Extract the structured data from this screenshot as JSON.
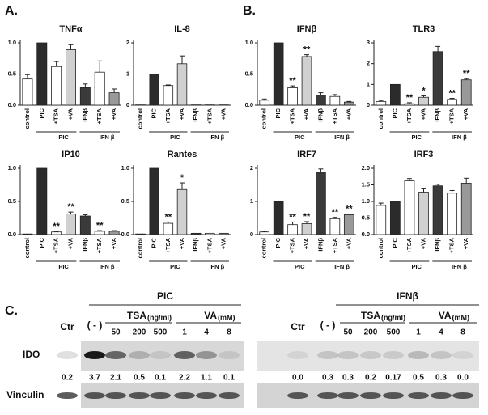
{
  "panels": [
    "A.",
    "B.",
    "C."
  ],
  "chart_data": [
    {
      "type": "bar",
      "title": "TNFα",
      "categories": [
        "control",
        "PIC",
        "+TSA",
        "+VA",
        "IFNβ",
        "+TSA",
        "+VA"
      ],
      "groups": [
        "PIC",
        "IFN β"
      ],
      "values": [
        0.42,
        1.0,
        0.62,
        0.89,
        0.28,
        0.53,
        0.2
      ],
      "errors": [
        0.07,
        0,
        0.08,
        0.08,
        0.06,
        0.18,
        0.06
      ],
      "annotations": [
        null,
        null,
        null,
        null,
        null,
        null,
        null
      ],
      "colors": [
        "#ffffff",
        "#2b2b2b",
        "#ffffff",
        "#d0d0d0",
        "#3a3a3a",
        "#ffffff",
        "#999999"
      ],
      "ylim": [
        0,
        1
      ],
      "yticks": [
        {
          "value": 0,
          "label": "0.0"
        },
        {
          "value": 0.5,
          "label": "0.5"
        },
        {
          "value": 1,
          "label": "1.0"
        }
      ]
    },
    {
      "type": "bar",
      "title": "IL-8",
      "categories": [
        "control",
        "PIC",
        "+TSA",
        "+VA",
        "IFNβ",
        "+TSA",
        "+VA"
      ],
      "groups": [
        "PIC",
        "IFN β"
      ],
      "values": [
        0.01,
        1.0,
        0.63,
        1.33,
        0.01,
        0.01,
        0.01
      ],
      "errors": [
        0,
        0,
        0.02,
        0.25,
        0,
        0,
        0
      ],
      "annotations": [
        null,
        null,
        null,
        null,
        null,
        null,
        null
      ],
      "colors": [
        "#ffffff",
        "#2b2b2b",
        "#ffffff",
        "#d0d0d0",
        "#3a3a3a",
        "#ffffff",
        "#999999"
      ],
      "ylim": [
        0,
        2
      ],
      "yticks": [
        0,
        1,
        2
      ]
    },
    {
      "type": "bar",
      "title": "IFNβ",
      "categories": [
        "control",
        "PIC",
        "+TSA",
        "+VA",
        "IFNβ",
        "+TSA",
        "+VA"
      ],
      "groups": [
        "PIC",
        "IFN β"
      ],
      "values": [
        0.08,
        1.0,
        0.28,
        0.78,
        0.16,
        0.14,
        0.05
      ],
      "errors": [
        0.02,
        0,
        0.03,
        0.03,
        0.04,
        0.03,
        0.01
      ],
      "annotations": [
        null,
        null,
        "**",
        "**",
        null,
        null,
        null
      ],
      "colors": [
        "#ffffff",
        "#2b2b2b",
        "#ffffff",
        "#d0d0d0",
        "#3a3a3a",
        "#ffffff",
        "#999999"
      ],
      "ylim": [
        0,
        1
      ],
      "yticks": [
        {
          "value": 0,
          "label": "0.0"
        },
        {
          "value": 0.5,
          "label": "0.5"
        },
        {
          "value": 1,
          "label": "1.0"
        }
      ]
    },
    {
      "type": "bar",
      "title": "TLR3",
      "categories": [
        "control",
        "PIC",
        "+TSA",
        "+VA",
        "IFNβ",
        "+TSA",
        "+VA"
      ],
      "groups": [
        "PIC",
        "IFN β"
      ],
      "values": [
        0.18,
        1.0,
        0.07,
        0.38,
        2.58,
        0.28,
        1.22
      ],
      "errors": [
        0.05,
        0,
        0.05,
        0.07,
        0.25,
        0.05,
        0.06
      ],
      "annotations": [
        null,
        null,
        "**",
        "*",
        null,
        "**",
        "**"
      ],
      "colors": [
        "#ffffff",
        "#2b2b2b",
        "#ffffff",
        "#d0d0d0",
        "#3a3a3a",
        "#ffffff",
        "#999999"
      ],
      "ylim": [
        0,
        3
      ],
      "yticks": [
        0,
        1,
        2,
        3
      ]
    },
    {
      "type": "bar",
      "title": "IP10",
      "categories": [
        "control",
        "PIC",
        "+TSA",
        "+VA",
        "IFNβ",
        "+TSA",
        "+VA"
      ],
      "groups": [
        "PIC",
        "IFN β"
      ],
      "values": [
        0.01,
        1.0,
        0.04,
        0.31,
        0.28,
        0.05,
        0.05
      ],
      "errors": [
        0,
        0,
        0.01,
        0.03,
        0.02,
        0.01,
        0.01
      ],
      "annotations": [
        null,
        null,
        "**",
        "**",
        null,
        "**",
        null
      ],
      "colors": [
        "#ffffff",
        "#2b2b2b",
        "#ffffff",
        "#d0d0d0",
        "#3a3a3a",
        "#ffffff",
        "#999999"
      ],
      "ylim": [
        0,
        1
      ],
      "yticks": [
        {
          "value": 0,
          "label": "0.0"
        },
        {
          "value": 0.5,
          "label": "0.5"
        },
        {
          "value": 1,
          "label": "1.0"
        }
      ]
    },
    {
      "type": "bar",
      "title": "Rantes",
      "categories": [
        "control",
        "PIC",
        "+TSA",
        "+VA",
        "IFNβ",
        "+TSA",
        "+VA"
      ],
      "groups": [
        "PIC",
        "IFN β"
      ],
      "values": [
        0.01,
        1.0,
        0.17,
        0.68,
        0.02,
        0.02,
        0.02
      ],
      "errors": [
        0,
        0,
        0.02,
        0.1,
        0,
        0,
        0
      ],
      "annotations": [
        null,
        null,
        "**",
        "*",
        null,
        null,
        null
      ],
      "colors": [
        "#ffffff",
        "#2b2b2b",
        "#ffffff",
        "#d0d0d0",
        "#3a3a3a",
        "#ffffff",
        "#999999"
      ],
      "ylim": [
        0,
        1
      ],
      "yticks": [
        {
          "value": 0,
          "label": "0.0"
        },
        {
          "value": 0.5,
          "label": "0.5"
        },
        {
          "value": 1,
          "label": "1.0"
        }
      ]
    },
    {
      "type": "bar",
      "title": "IRF7",
      "categories": [
        "control",
        "PIC",
        "+TSA",
        "+VA",
        "IFNβ",
        "+TSA",
        "+VA"
      ],
      "groups": [
        "PIC",
        "IFN β"
      ],
      "values": [
        0.08,
        1.0,
        0.3,
        0.33,
        1.88,
        0.48,
        0.6
      ],
      "errors": [
        0.02,
        0,
        0.08,
        0.06,
        0.1,
        0.04,
        0.02
      ],
      "annotations": [
        null,
        null,
        "**",
        "**",
        null,
        "**",
        "**"
      ],
      "colors": [
        "#ffffff",
        "#2b2b2b",
        "#ffffff",
        "#d0d0d0",
        "#3a3a3a",
        "#ffffff",
        "#999999"
      ],
      "ylim": [
        0,
        2
      ],
      "yticks": [
        0,
        1,
        2
      ]
    },
    {
      "type": "bar",
      "title": "IRF3",
      "categories": [
        "control",
        "PIC",
        "+TSA",
        "+VA",
        "IFNβ",
        "+TSA",
        "+VA"
      ],
      "groups": [
        "PIC",
        "IFN β"
      ],
      "values": [
        0.88,
        1.0,
        1.62,
        1.28,
        1.47,
        1.25,
        1.55
      ],
      "errors": [
        0.07,
        0,
        0.07,
        0.1,
        0.05,
        0.08,
        0.15
      ],
      "annotations": [
        null,
        null,
        null,
        null,
        null,
        null,
        null
      ],
      "colors": [
        "#ffffff",
        "#2b2b2b",
        "#ffffff",
        "#d0d0d0",
        "#3a3a3a",
        "#ffffff",
        "#999999"
      ],
      "ylim": [
        0,
        2
      ],
      "yticks": [
        {
          "value": 0,
          "label": "0.0"
        },
        {
          "value": 0.5,
          "label": "0.5"
        },
        {
          "value": 1,
          "label": "1.0"
        },
        {
          "value": 1.5,
          "label": "1.5"
        },
        {
          "value": 2,
          "label": "2.0"
        }
      ]
    }
  ],
  "blot": {
    "rows": [
      "IDO",
      "Vinculin"
    ],
    "sides": [
      {
        "title": "PIC",
        "ctr": "Ctr",
        "neg": "( - )",
        "tsa": "TSA",
        "tsa_unit": "(ng/ml)",
        "va": "VA",
        "va_unit": "(mM)",
        "tsa_doses": [
          "50",
          "200",
          "500"
        ],
        "va_doses": [
          "1",
          "4",
          "8"
        ],
        "ido_values": [
          "0.2",
          "3.7",
          "2.1",
          "0.5",
          "0.1",
          "2.2",
          "1.1",
          "0.1"
        ]
      },
      {
        "title": "IFNβ",
        "ctr": "Ctr",
        "neg": "( - )",
        "tsa": "TSA",
        "tsa_unit": "(ng/ml)",
        "va": "VA",
        "va_unit": "(mM)",
        "tsa_doses": [
          "50",
          "200",
          "500"
        ],
        "va_doses": [
          "1",
          "4",
          "8"
        ],
        "ido_values": [
          "0.0",
          "0.3",
          "0.3",
          "0.2",
          "0.17",
          "0.5",
          "0.3",
          "0.0"
        ]
      }
    ]
  }
}
